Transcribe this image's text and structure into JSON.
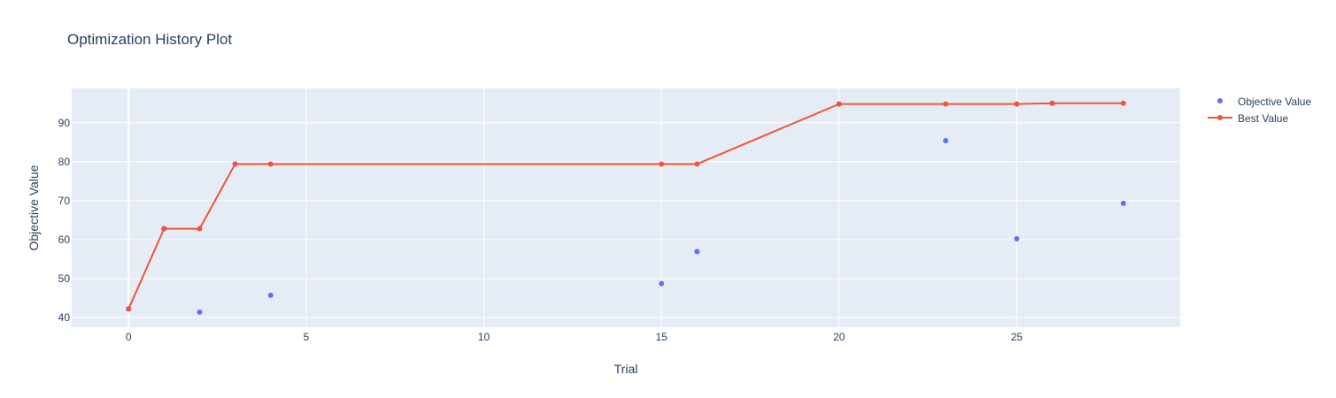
{
  "chart_data": {
    "type": "scatter",
    "title": "Optimization History Plot",
    "xlabel": "Trial",
    "ylabel": "Objective Value",
    "xlim": [
      -1.6,
      29.6
    ],
    "ylim": [
      37.5,
      98.8
    ],
    "xticks": [
      0,
      5,
      10,
      15,
      20,
      25
    ],
    "yticks": [
      40,
      50,
      60,
      70,
      80,
      90
    ],
    "grid": true,
    "legend_position": "top-right",
    "colors": {
      "objective": "#636efa",
      "best": "#ef553b",
      "plot_bg": "#e5ecf6",
      "grid": "#ffffff",
      "text": "#2a3f5f"
    },
    "series": [
      {
        "name": "Objective Value",
        "mode": "markers",
        "x": [
          0,
          1,
          2,
          3,
          4,
          15,
          16,
          20,
          23,
          25,
          26,
          28
        ],
        "y": [
          42.2,
          62.8,
          41.4,
          79.4,
          45.7,
          48.7,
          56.9,
          94.8,
          85.4,
          60.2,
          95.0,
          69.3
        ]
      },
      {
        "name": "Best Value",
        "mode": "lines+markers",
        "x": [
          0,
          1,
          2,
          3,
          4,
          15,
          16,
          20,
          23,
          25,
          26,
          28
        ],
        "y": [
          42.2,
          62.8,
          62.8,
          79.4,
          79.4,
          79.4,
          79.4,
          94.8,
          94.8,
          94.8,
          95.0,
          95.0
        ]
      }
    ]
  }
}
